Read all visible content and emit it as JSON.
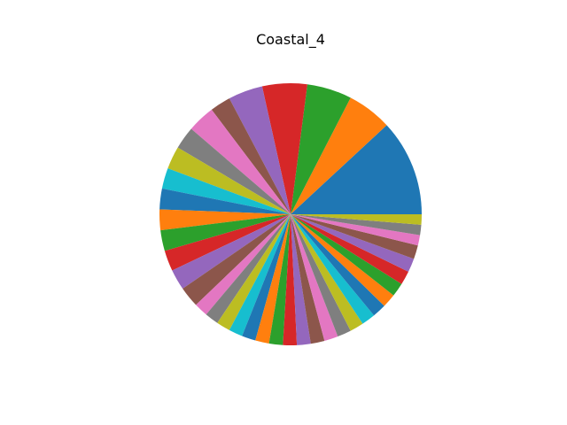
{
  "chart_data": {
    "type": "pie",
    "title": "Coastal_4",
    "start_angle_deg": 0,
    "direction": "counterclockwise",
    "values": [
      14,
      6.5,
      6.5,
      6.5,
      5,
      3,
      4,
      3.3,
      3.3,
      3,
      3,
      3,
      3,
      3,
      3,
      3,
      2,
      2,
      2,
      2,
      2,
      2,
      2,
      2,
      2,
      2,
      2,
      2,
      2,
      2,
      2,
      2,
      2,
      2,
      2,
      2,
      1.5,
      1.5,
      1.5
    ],
    "colors": [
      "#1f77b4",
      "#ff7f0e",
      "#2ca02c",
      "#d62728",
      "#9467bd",
      "#8c564b",
      "#e377c2",
      "#7f7f7f",
      "#bcbd22",
      "#17becf"
    ]
  }
}
